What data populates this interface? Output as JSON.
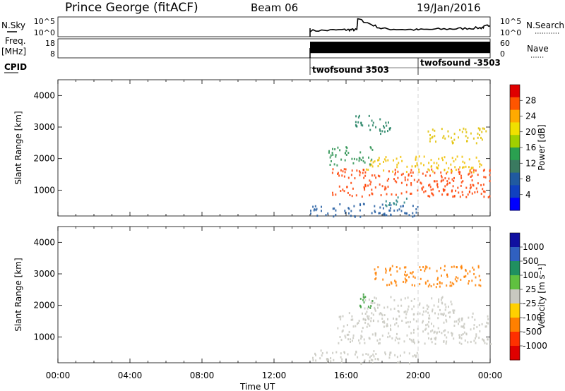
{
  "header": {
    "station": "Prince George (fitACF)",
    "beam": "Beam 06",
    "date": "19/Jan/2016"
  },
  "labels": {
    "nsky": "N.Sky",
    "nsearch": "N.Search",
    "freq": "Freq.",
    "mhz": "[MHz]",
    "nave": "Nave",
    "cpid": "CPID"
  },
  "colors": {
    "background": "#ffffff",
    "noise_trace": "#000000",
    "ground_scatter": "#c8c8c0"
  },
  "chart_data": [
    {
      "id": "noise",
      "type": "line",
      "y_left_ticks": [
        "10^5",
        "10^0"
      ],
      "y_right_ticks": [
        "10^5",
        "10^0"
      ],
      "series": [
        {
          "name": "N.Sky",
          "x_hours": [
            14.0,
            16.0,
            16.6,
            16.65,
            18.0,
            20.0,
            22.0,
            23.5,
            24.0
          ],
          "y_frac": [
            0.3,
            0.35,
            0.35,
            0.9,
            0.4,
            0.35,
            0.4,
            0.45,
            0.6
          ]
        }
      ]
    },
    {
      "id": "frequency",
      "type": "area",
      "y_left_ticks": [
        "18",
        "8"
      ],
      "y_right_ticks": [
        "60",
        "0"
      ],
      "x_range_hours": [
        14.0,
        24.0
      ],
      "y_fill_frac": [
        0.25,
        0.85
      ]
    },
    {
      "id": "cpid",
      "type": "annotation",
      "segments": [
        {
          "start_hours": 14.0,
          "label": "twofsound 3503"
        },
        {
          "start_hours": 20.0,
          "label": "twofsound -3503"
        }
      ]
    },
    {
      "id": "power",
      "type": "heatmap",
      "ylabel": "Slant Range [km]",
      "ylim": [
        180,
        4500
      ],
      "yticks": [
        1000,
        2000,
        3000,
        4000
      ],
      "colorbar_label": "Power [dB]",
      "colorbar_ticks": [
        "28",
        "24",
        "20",
        "16",
        "12",
        "8",
        "4"
      ],
      "colorbar_colors": [
        "#e00000",
        "#ff5500",
        "#ffaa00",
        "#f0e000",
        "#a0d000",
        "#2aa050",
        "#3a7a60",
        "#205aa0",
        "#1040c0",
        "#0000ff"
      ],
      "echo_regions": [
        {
          "x0": 15.2,
          "x1": 24.0,
          "y0": 800,
          "y1": 1700,
          "color": "#ff4000"
        },
        {
          "x0": 17.0,
          "x1": 23.5,
          "y0": 1600,
          "y1": 2100,
          "color": "#f0c000"
        },
        {
          "x0": 15.0,
          "x1": 17.5,
          "y0": 1800,
          "y1": 2400,
          "color": "#2a9050"
        },
        {
          "x0": 16.5,
          "x1": 18.5,
          "y0": 2800,
          "y1": 3400,
          "color": "#208060"
        },
        {
          "x0": 20.5,
          "x1": 23.8,
          "y0": 2500,
          "y1": 3000,
          "color": "#e0c000"
        },
        {
          "x0": 14.0,
          "x1": 20.0,
          "y0": 180,
          "y1": 600,
          "color": "#205aa0"
        },
        {
          "x0": 18.0,
          "x1": 19.5,
          "y0": 500,
          "y1": 800,
          "color": "#208080"
        }
      ]
    },
    {
      "id": "velocity",
      "type": "heatmap",
      "ylabel": "Slant Range [km]",
      "xlabel": "Time UT",
      "ylim": [
        180,
        4500
      ],
      "yticks": [
        1000,
        2000,
        3000,
        4000
      ],
      "xticks": [
        "00:00",
        "04:00",
        "08:00",
        "12:00",
        "16:00",
        "20:00",
        "00:00"
      ],
      "colorbar_label": "Velocity [m s⁻¹]",
      "colorbar_ticks": [
        "1000",
        "500",
        "100",
        "25",
        "-25",
        "-100",
        "-500",
        "-1000"
      ],
      "colorbar_colors": [
        "#1010a0",
        "#3060c0",
        "#209060",
        "#60c040",
        "#c8c8c0",
        "#ffd000",
        "#ff8000",
        "#ff3000",
        "#e00000"
      ],
      "echo_regions": [
        {
          "x0": 15.5,
          "x1": 24.0,
          "y0": 800,
          "y1": 1800,
          "color": "#c8c8c0"
        },
        {
          "x0": 17.0,
          "x1": 22.0,
          "y0": 1700,
          "y1": 2300,
          "color": "#c8c8c0"
        },
        {
          "x0": 16.5,
          "x1": 17.5,
          "y0": 1900,
          "y1": 2400,
          "color": "#40a040"
        },
        {
          "x0": 17.5,
          "x1": 23.5,
          "y0": 2600,
          "y1": 3300,
          "color": "#ff8000"
        },
        {
          "x0": 14.0,
          "x1": 20.0,
          "y0": 180,
          "y1": 600,
          "color": "#c8c8c0"
        }
      ]
    }
  ]
}
